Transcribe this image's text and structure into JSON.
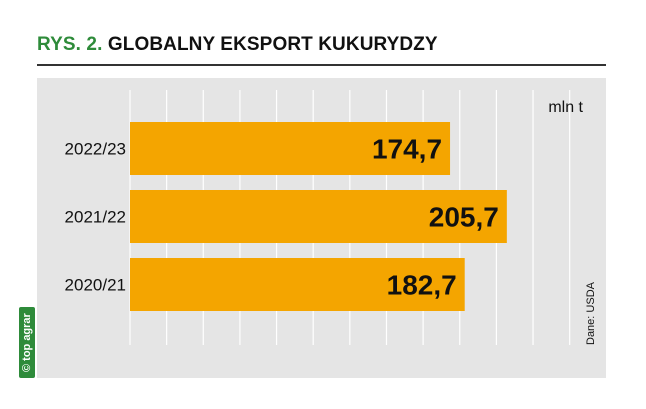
{
  "figure": {
    "prefix": "RYS. 2.",
    "title": "GLOBALNY EKSPORT KUKURYDZY",
    "unit": "mln t",
    "source": "Dane: USDA",
    "logo": "© top agrar"
  },
  "colors": {
    "bar": "#f4a500",
    "panel": "#e5e5e5",
    "grid": "#ffffff",
    "title_prefix": "#2e8b3a",
    "logo": "#2e8b3a"
  },
  "chart_data": {
    "type": "bar",
    "orientation": "horizontal",
    "title": "GLOBALNY EKSPORT KUKURYDZY",
    "unit": "mln t",
    "categories": [
      "2022/23",
      "2021/22",
      "2020/21"
    ],
    "values": [
      174.7,
      205.7,
      182.7
    ],
    "value_labels": [
      "174,7",
      "205,7",
      "182,7"
    ],
    "xlim": [
      0,
      250
    ],
    "grid": true,
    "legend": "none"
  }
}
